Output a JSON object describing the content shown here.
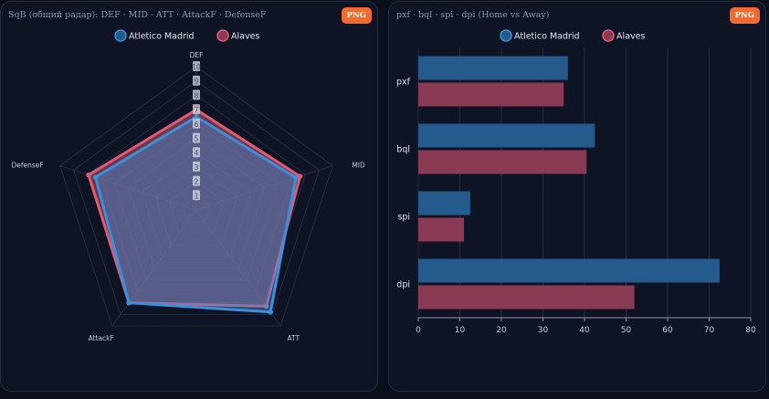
{
  "colors": {
    "home": "#3d8fd9",
    "away": "#e05a73",
    "home_bar": "#245a8c",
    "away_bar": "#8b3a53",
    "button": "#f26a2d",
    "grid": "#262d40",
    "tick": "#c9cfdb",
    "label": "#c4c9d4"
  },
  "radar": {
    "title": "SqB (общий радар): DEF · MID · ATT · AttackF · DefenseF",
    "png_label": "PNG"
  },
  "bar": {
    "title": "pxf · bql · spi · dpi (Home vs Away)",
    "png_label": "PNG"
  },
  "chart_data": [
    {
      "type": "radar",
      "title": "SqB (общий радар): DEF · MID · ATT · AttackF · DefenseF",
      "axes": [
        "DEF",
        "MID",
        "ATT",
        "AttackF",
        "DefenseF"
      ],
      "rlim": [
        0,
        10
      ],
      "rticks": [
        "1",
        "2",
        "3",
        "4",
        "5",
        "6",
        "7",
        "8",
        "9",
        "10"
      ],
      "legend": "top-center",
      "series": [
        {
          "name": "Atletico Madrid",
          "values": [
            6.5,
            7.3,
            8.8,
            8.0,
            7.4
          ]
        },
        {
          "name": "Alaves",
          "values": [
            7.0,
            7.6,
            8.3,
            8.0,
            7.9
          ]
        }
      ]
    },
    {
      "type": "bar",
      "orientation": "horizontal",
      "title": "pxf · bql · spi · dpi (Home vs Away)",
      "categories": [
        "pxf",
        "bql",
        "spi",
        "dpi"
      ],
      "xlim": [
        0,
        80
      ],
      "xticks": [
        "0",
        "10",
        "20",
        "30",
        "40",
        "50",
        "60",
        "70",
        "80"
      ],
      "grid": true,
      "legend": "top-center",
      "series": [
        {
          "name": "Atletico Madrid",
          "values": [
            36,
            42.5,
            12.5,
            72.5
          ]
        },
        {
          "name": "Alaves",
          "values": [
            35,
            40.5,
            11,
            52
          ]
        }
      ]
    }
  ]
}
